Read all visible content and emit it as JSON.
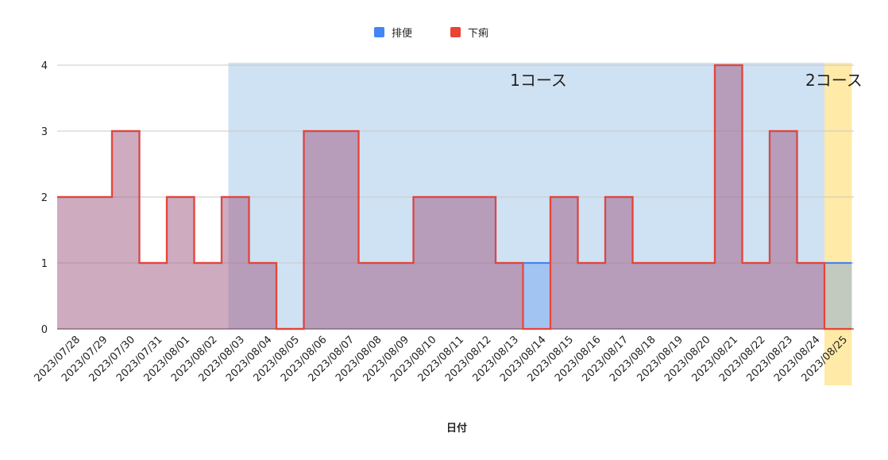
{
  "chart_data": {
    "type": "area",
    "step": true,
    "xlabel": "日付",
    "ylabel": "",
    "ylim": [
      0,
      4
    ],
    "yticks": [
      0,
      1,
      2,
      3,
      4
    ],
    "grid": true,
    "legend_position": "top",
    "categories": [
      "2023/07/28",
      "2023/07/29",
      "2023/07/30",
      "2023/07/31",
      "2023/08/01",
      "2023/08/02",
      "2023/08/03",
      "2023/08/04",
      "2023/08/05",
      "2023/08/06",
      "2023/08/07",
      "2023/08/08",
      "2023/08/09",
      "2023/08/10",
      "2023/08/11",
      "2023/08/12",
      "2023/08/13",
      "2023/08/14",
      "2023/08/15",
      "2023/08/16",
      "2023/08/17",
      "2023/08/18",
      "2023/08/19",
      "2023/08/20",
      "2023/08/21",
      "2023/08/22",
      "2023/08/23",
      "2023/08/24",
      "2023/08/25"
    ],
    "series": [
      {
        "name": "排便",
        "color": "#4285f4",
        "values": [
          2,
          2,
          3,
          1,
          2,
          1,
          2,
          1,
          0,
          3,
          3,
          1,
          1,
          2,
          2,
          2,
          1,
          1,
          2,
          1,
          2,
          1,
          1,
          1,
          4,
          1,
          3,
          1,
          1
        ]
      },
      {
        "name": "下痢",
        "color": "#ea4335",
        "values": [
          2,
          2,
          3,
          1,
          2,
          1,
          2,
          1,
          0,
          3,
          3,
          1,
          1,
          2,
          2,
          2,
          1,
          0,
          2,
          1,
          2,
          1,
          1,
          1,
          4,
          1,
          3,
          1,
          0
        ]
      }
    ],
    "bands": [
      {
        "label": "1コース",
        "from": "2023/08/04",
        "to": "2023/08/24",
        "color": "#cfe2f3"
      },
      {
        "label": "2コース",
        "from": "2023/08/25",
        "to": "2023/08/25",
        "color": "#ffeaa7"
      }
    ]
  }
}
